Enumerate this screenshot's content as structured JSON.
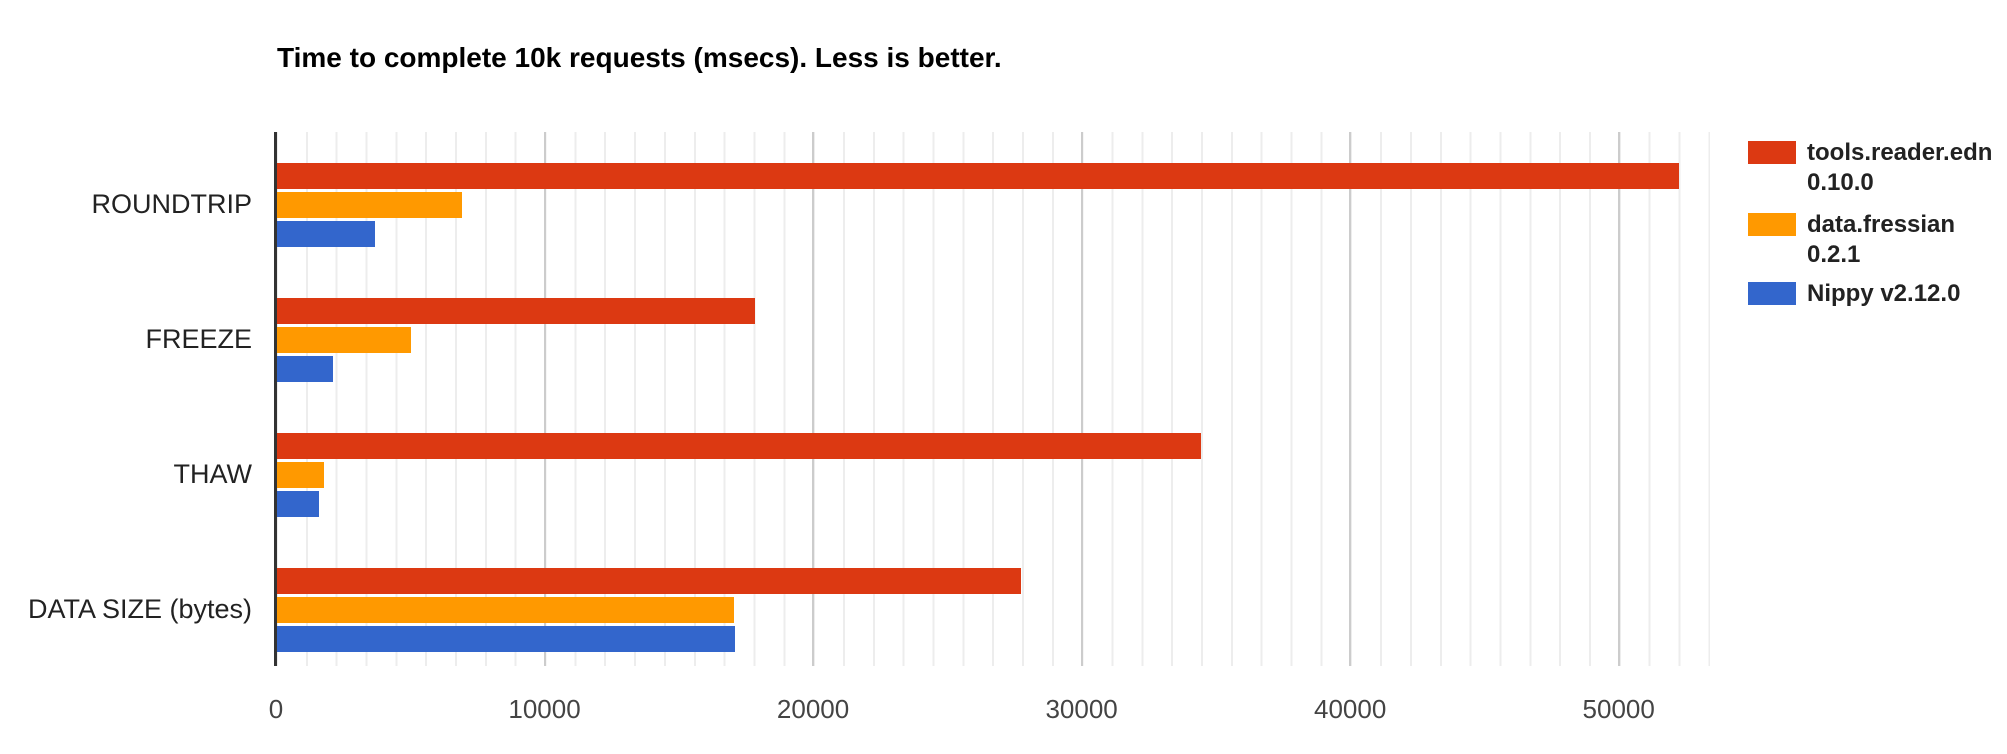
{
  "chart_data": {
    "type": "bar",
    "orientation": "horizontal",
    "title": "Time to complete 10k requests (msecs). Less is better.",
    "xlabel": "",
    "ylabel": "",
    "categories": [
      "ROUNDTRIP",
      "FREEZE",
      "THAW",
      "DATA SIZE (bytes)"
    ],
    "series": [
      {
        "name": "tools.reader.edn 0.10.0",
        "color": "#dc3912",
        "values": [
          52200,
          17800,
          34400,
          27700
        ]
      },
      {
        "name": "data.fressian 0.2.1",
        "color": "#ff9900",
        "values": [
          6900,
          5000,
          1750,
          17000
        ]
      },
      {
        "name": "Nippy v2.12.0",
        "color": "#3366cc",
        "values": [
          3650,
          2100,
          1550,
          17050
        ]
      }
    ],
    "x_ticks": [
      0,
      10000,
      20000,
      30000,
      40000,
      50000
    ],
    "x_max": 53400,
    "grid": true,
    "minor_grid": true,
    "legend_position": "right"
  },
  "colors": {
    "axis_line": "#333333",
    "major_gridline": "#cccccc",
    "minor_gridline": "#ededed",
    "title_text": "#000000",
    "category_text": "#222222",
    "tick_text": "#444444",
    "legend_text": "#222222",
    "background": "#ffffff"
  }
}
